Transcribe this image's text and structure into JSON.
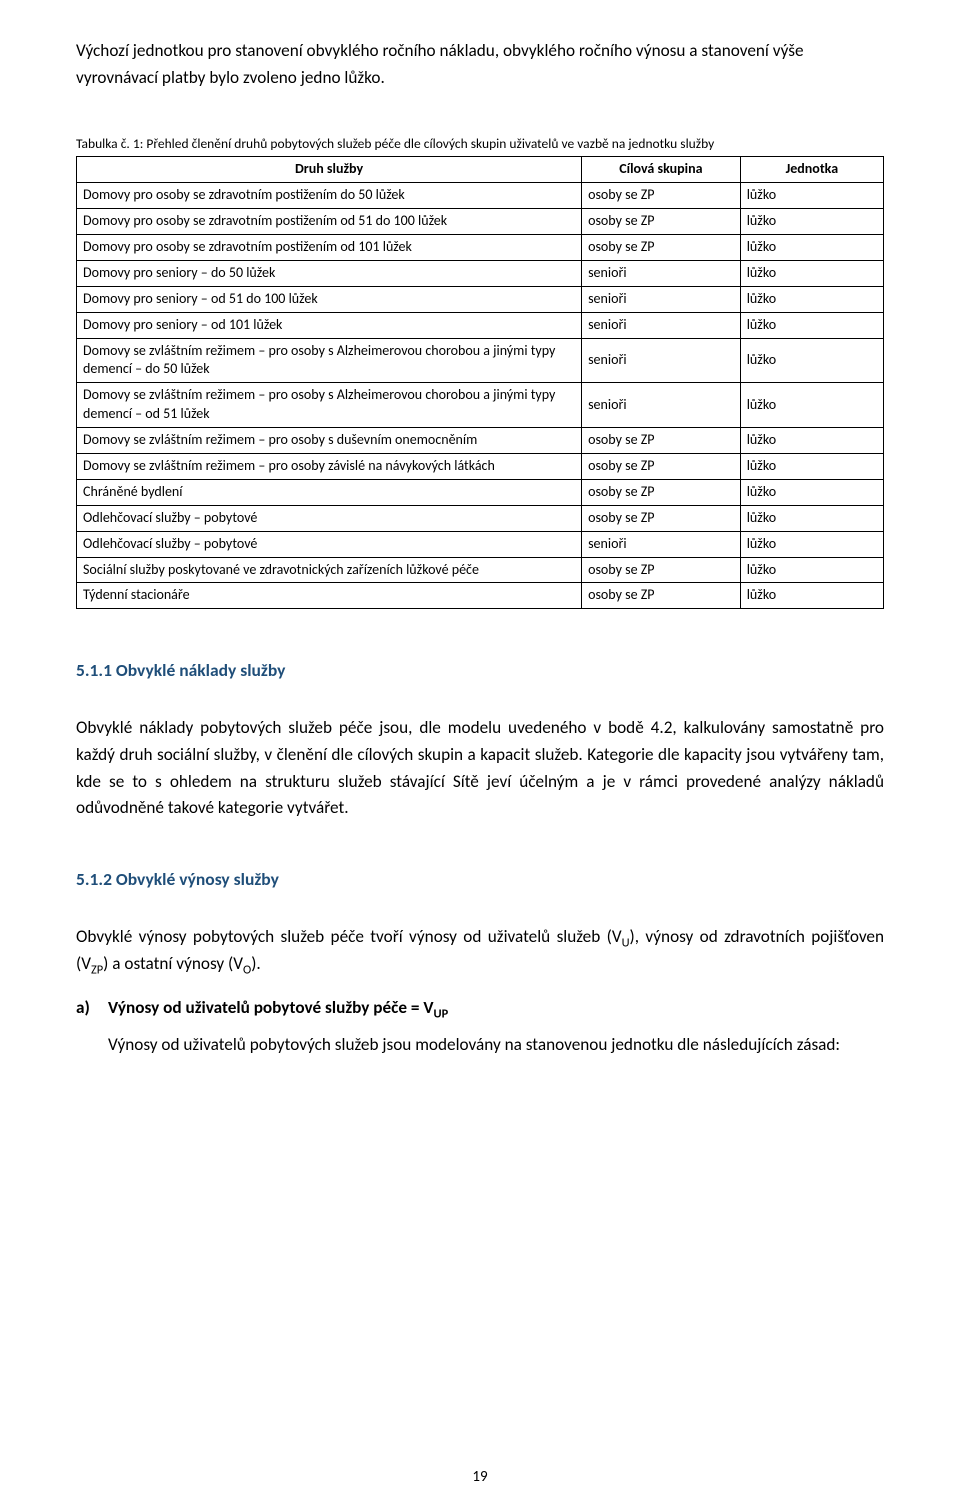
{
  "intro": "Výchozí jednotkou pro stanovení obvyklého ročního nákladu, obvyklého ročního výnosu a stanovení výše vyrovnávací platby bylo zvoleno jedno lůžko.",
  "table_caption": "Tabulka č. 1: Přehled členění druhů pobytových služeb péče dle cílových skupin uživatelů ve vazbě na jednotku služby",
  "table": {
    "headers": {
      "druh": "Druh služby",
      "cil": "Cílová skupina",
      "jed": "Jednotka"
    },
    "rows": [
      {
        "druh": "Domovy pro osoby se zdravotním postižením do 50 lůžek",
        "cil": "osoby se ZP",
        "jed": "lůžko"
      },
      {
        "druh": "Domovy pro osoby se zdravotním postižením od 51 do 100 lůžek",
        "cil": "osoby se ZP",
        "jed": "lůžko"
      },
      {
        "druh": "Domovy pro osoby se zdravotním postižením od 101 lůžek",
        "cil": "osoby se ZP",
        "jed": "lůžko"
      },
      {
        "druh": "Domovy pro seniory – do 50 lůžek",
        "cil": "senioři",
        "jed": "lůžko"
      },
      {
        "druh": "Domovy pro seniory – od 51 do 100 lůžek",
        "cil": "senioři",
        "jed": "lůžko"
      },
      {
        "druh": "Domovy pro seniory – od 101 lůžek",
        "cil": "senioři",
        "jed": "lůžko"
      },
      {
        "druh": "Domovy se zvláštním režimem – pro osoby s Alzheimerovou chorobou a jinými typy demencí – do 50 lůžek",
        "cil": "senioři",
        "jed": "lůžko"
      },
      {
        "druh": "Domovy se zvláštním režimem – pro osoby s Alzheimerovou chorobou a jinými typy demencí – od 51 lůžek",
        "cil": "senioři",
        "jed": "lůžko"
      },
      {
        "druh": "Domovy se zvláštním režimem – pro osoby s duševním onemocněním",
        "cil": "osoby se ZP",
        "jed": "lůžko"
      },
      {
        "druh": "Domovy se zvláštním režimem – pro osoby závislé na návykových látkách",
        "cil": "osoby se ZP",
        "jed": "lůžko"
      },
      {
        "druh": "Chráněné bydlení",
        "cil": "osoby se ZP",
        "jed": "lůžko"
      },
      {
        "druh": "Odlehčovací služby – pobytové",
        "cil": "osoby se ZP",
        "jed": "lůžko"
      },
      {
        "druh": "Odlehčovací služby – pobytové",
        "cil": "senioři",
        "jed": "lůžko"
      },
      {
        "druh": "Sociální služby poskytované ve zdravotnických zařízeních lůžkové péče",
        "cil": "osoby se ZP",
        "jed": "lůžko"
      },
      {
        "druh": "Týdenní stacionáře",
        "cil": "osoby se ZP",
        "jed": "lůžko"
      }
    ]
  },
  "sec511_heading": "5.1.1   Obvyklé náklady služby",
  "sec511_body": "Obvyklé náklady pobytových služeb péče jsou, dle modelu uvedeného v bodě 4.2, kalkulovány samostatně pro každý druh sociální služby, v členění dle cílových skupin a kapacit služeb. Kategorie dle kapacity jsou vytvářeny tam, kde se to s ohledem na strukturu služeb stávající Sítě jeví účelným a je v rámci provedené analýzy nákladů odůvodněné takové kategorie vytvářet.",
  "sec512_heading": "5.1.2   Obvyklé výnosy služby",
  "sec512_intro_pre": "Obvyklé výnosy pobytových služeb péče tvoří výnosy od uživatelů služeb (V",
  "sec512_intro_u": "U",
  "sec512_intro_mid1": "), výnosy od zdravotních pojišťoven (V",
  "sec512_intro_zp": "ZP",
  "sec512_intro_mid2": ") a ostatní výnosy (V",
  "sec512_intro_o": "O",
  "sec512_intro_post": ").",
  "list_a_marker": "a)",
  "list_a_label_pre": "Výnosy od uživatelů pobytové služby péče = V",
  "list_a_label_sub": "UP",
  "list_a_body": "Výnosy od uživatelů pobytových služeb jsou modelovány na stanovenou jednotku dle následujících zásad:",
  "page_number": "19",
  "colors": {
    "heading": "#1f4e79",
    "text": "#000000",
    "border": "#000000",
    "background": "#ffffff"
  }
}
